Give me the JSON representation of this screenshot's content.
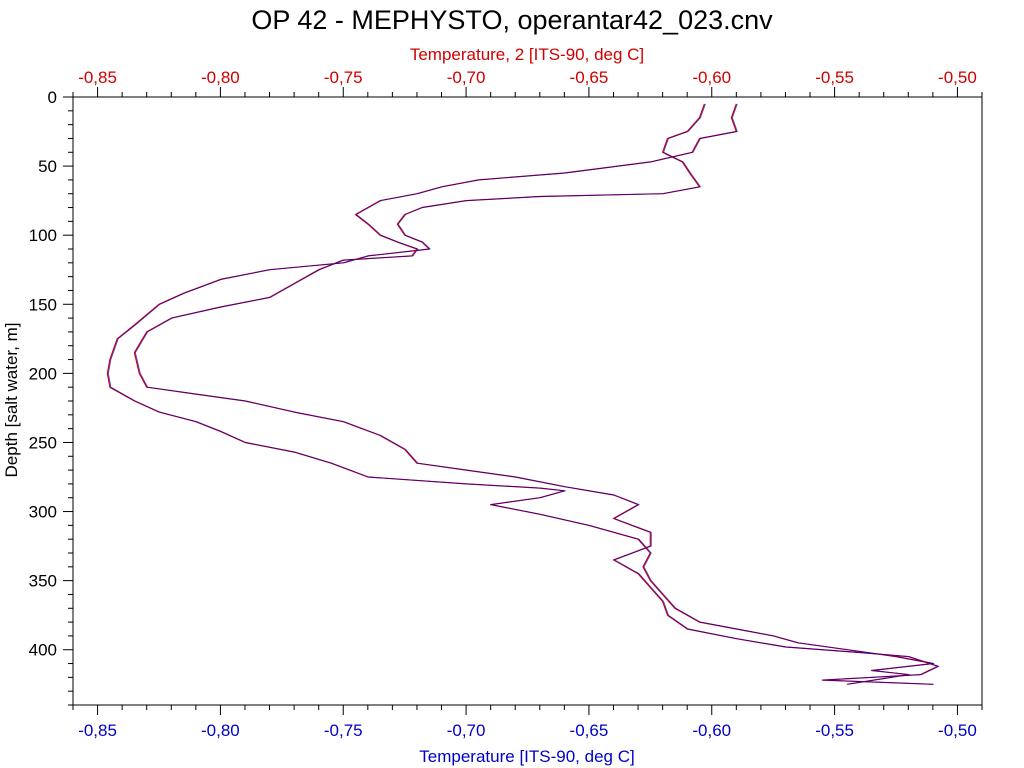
{
  "colors": {
    "top_axis": "#d00000",
    "bottom_axis": "#0000c8",
    "left_axis": "#000000",
    "series_primary": "#0000c8",
    "series_secondary": "#d00000"
  },
  "chart_data": {
    "type": "line",
    "title": "OP 42 - MEPHYSTO, operantar42_023.cnv",
    "top_axis_label": "Temperature, 2 [ITS-90, deg C]",
    "bottom_axis_label": "Temperature [ITS-90, deg C]",
    "y_axis_label": "Depth [salt water, m]",
    "xlim": [
      -0.86,
      -0.49
    ],
    "ylim": [
      0,
      440
    ],
    "y_inverted": true,
    "grid": false,
    "x_ticks": [
      "-0,85",
      "-0,80",
      "-0,75",
      "-0,70",
      "-0,65",
      "-0,60",
      "-0,55",
      "-0,50"
    ],
    "x_tick_values": [
      -0.85,
      -0.8,
      -0.75,
      -0.7,
      -0.65,
      -0.6,
      -0.55,
      -0.5
    ],
    "y_ticks": [
      "0",
      "50",
      "100",
      "150",
      "200",
      "250",
      "300",
      "350",
      "400"
    ],
    "y_tick_values": [
      0,
      50,
      100,
      150,
      200,
      250,
      300,
      350,
      400
    ],
    "series": [
      {
        "axis": "bottom",
        "color_key": "series_primary",
        "points": [
          [
            -0.603,
            5
          ],
          [
            -0.605,
            15
          ],
          [
            -0.61,
            25
          ],
          [
            -0.618,
            30
          ],
          [
            -0.62,
            40
          ],
          [
            -0.612,
            47
          ],
          [
            -0.609,
            55
          ],
          [
            -0.605,
            65
          ],
          [
            -0.62,
            70
          ],
          [
            -0.67,
            72
          ],
          [
            -0.7,
            75
          ],
          [
            -0.718,
            80
          ],
          [
            -0.725,
            85
          ],
          [
            -0.728,
            92
          ],
          [
            -0.725,
            100
          ],
          [
            -0.718,
            105
          ],
          [
            -0.715,
            110
          ],
          [
            -0.74,
            115
          ],
          [
            -0.75,
            120
          ],
          [
            -0.78,
            125
          ],
          [
            -0.8,
            132
          ],
          [
            -0.815,
            142
          ],
          [
            -0.825,
            150
          ],
          [
            -0.835,
            165
          ],
          [
            -0.842,
            175
          ],
          [
            -0.845,
            190
          ],
          [
            -0.846,
            200
          ],
          [
            -0.845,
            210
          ],
          [
            -0.835,
            220
          ],
          [
            -0.825,
            228
          ],
          [
            -0.81,
            235
          ],
          [
            -0.8,
            242
          ],
          [
            -0.79,
            250
          ],
          [
            -0.77,
            257
          ],
          [
            -0.755,
            265
          ],
          [
            -0.74,
            275
          ],
          [
            -0.7,
            280
          ],
          [
            -0.67,
            283
          ],
          [
            -0.66,
            285
          ],
          [
            -0.67,
            290
          ],
          [
            -0.69,
            295
          ],
          [
            -0.67,
            302
          ],
          [
            -0.65,
            310
          ],
          [
            -0.63,
            320
          ],
          [
            -0.625,
            330
          ],
          [
            -0.628,
            340
          ],
          [
            -0.625,
            350
          ],
          [
            -0.62,
            360
          ],
          [
            -0.615,
            370
          ],
          [
            -0.605,
            380
          ],
          [
            -0.59,
            385
          ],
          [
            -0.575,
            390
          ],
          [
            -0.565,
            395
          ],
          [
            -0.545,
            400
          ],
          [
            -0.525,
            405
          ],
          [
            -0.51,
            410
          ],
          [
            -0.535,
            415
          ],
          [
            -0.52,
            418
          ],
          [
            -0.545,
            425
          ]
        ]
      },
      {
        "axis": "top",
        "color_key": "series_secondary",
        "points": [
          [
            -0.59,
            5
          ],
          [
            -0.592,
            15
          ],
          [
            -0.59,
            25
          ],
          [
            -0.605,
            30
          ],
          [
            -0.608,
            40
          ],
          [
            -0.625,
            47
          ],
          [
            -0.66,
            55
          ],
          [
            -0.695,
            60
          ],
          [
            -0.71,
            65
          ],
          [
            -0.72,
            70
          ],
          [
            -0.735,
            75
          ],
          [
            -0.745,
            85
          ],
          [
            -0.74,
            92
          ],
          [
            -0.735,
            100
          ],
          [
            -0.728,
            105
          ],
          [
            -0.72,
            110
          ],
          [
            -0.722,
            115
          ],
          [
            -0.75,
            118
          ],
          [
            -0.76,
            125
          ],
          [
            -0.77,
            135
          ],
          [
            -0.78,
            145
          ],
          [
            -0.8,
            152
          ],
          [
            -0.82,
            160
          ],
          [
            -0.83,
            170
          ],
          [
            -0.835,
            185
          ],
          [
            -0.833,
            200
          ],
          [
            -0.83,
            210
          ],
          [
            -0.81,
            215
          ],
          [
            -0.79,
            220
          ],
          [
            -0.77,
            228
          ],
          [
            -0.75,
            235
          ],
          [
            -0.735,
            245
          ],
          [
            -0.725,
            255
          ],
          [
            -0.72,
            265
          ],
          [
            -0.7,
            270
          ],
          [
            -0.68,
            275
          ],
          [
            -0.66,
            282
          ],
          [
            -0.64,
            288
          ],
          [
            -0.63,
            295
          ],
          [
            -0.64,
            305
          ],
          [
            -0.625,
            315
          ],
          [
            -0.625,
            325
          ],
          [
            -0.64,
            335
          ],
          [
            -0.63,
            345
          ],
          [
            -0.625,
            355
          ],
          [
            -0.62,
            365
          ],
          [
            -0.618,
            375
          ],
          [
            -0.61,
            385
          ],
          [
            -0.59,
            392
          ],
          [
            -0.57,
            398
          ],
          [
            -0.54,
            402
          ],
          [
            -0.52,
            405
          ],
          [
            -0.508,
            412
          ],
          [
            -0.515,
            418
          ],
          [
            -0.555,
            422
          ],
          [
            -0.51,
            425
          ]
        ]
      }
    ]
  }
}
